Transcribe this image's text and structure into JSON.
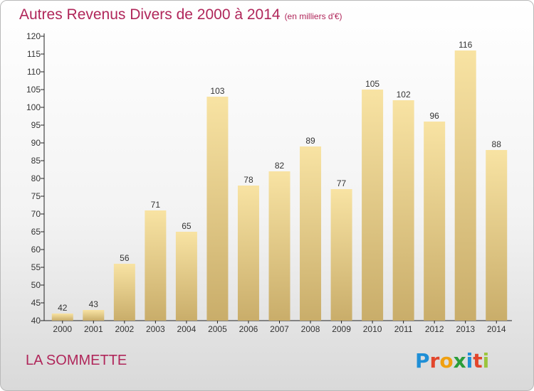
{
  "title": "Autres Revenus Divers de 2000 à 2014",
  "unit": "(en milliers d'€)",
  "location": "LA SOMMETTE",
  "logo_text": "Proxiti",
  "colors": {
    "title": "#b0265a",
    "bar_light": "#f8e3a3",
    "bar_dark": "#c9ad6a",
    "grid_text": "#333333"
  },
  "chart_data": {
    "type": "bar",
    "title": "Autres Revenus Divers de 2000 à 2014",
    "xlabel": "",
    "ylabel": "",
    "categories": [
      "2000",
      "2001",
      "2002",
      "2003",
      "2004",
      "2005",
      "2006",
      "2007",
      "2008",
      "2009",
      "2010",
      "2011",
      "2012",
      "2013",
      "2014"
    ],
    "values": [
      42,
      43,
      56,
      71,
      65,
      103,
      78,
      82,
      89,
      77,
      105,
      102,
      96,
      116,
      88
    ],
    "ylim": [
      40,
      120
    ],
    "yticks": [
      40,
      45,
      50,
      55,
      60,
      65,
      70,
      75,
      80,
      85,
      90,
      95,
      100,
      105,
      110,
      115,
      120
    ],
    "grid": false,
    "data_labels": true
  }
}
